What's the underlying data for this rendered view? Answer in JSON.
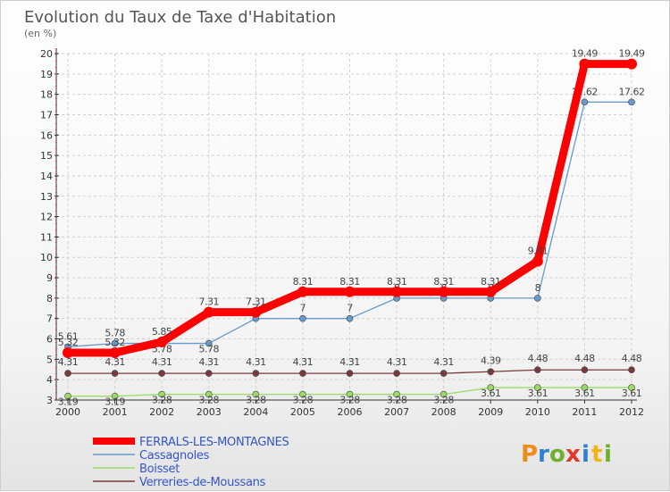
{
  "chart_data": {
    "type": "line",
    "title": "Evolution du Taux de Taxe d'Habitation",
    "ylabel": "(en %)",
    "xlabel": "",
    "ylim": [
      3,
      20
    ],
    "categories": [
      "2000",
      "2001",
      "2002",
      "2003",
      "2004",
      "2005",
      "2006",
      "2007",
      "2008",
      "2009",
      "2010",
      "2011",
      "2012"
    ],
    "yticks": [
      "3",
      "4",
      "5",
      "6",
      "7",
      "8",
      "9",
      "10",
      "11",
      "12",
      "13",
      "14",
      "15",
      "16",
      "17",
      "18",
      "19",
      "20"
    ],
    "series": [
      {
        "name": "FERRALS-LES-MONTAGNES",
        "color": "#ff0000",
        "values": [
          5.32,
          5.32,
          5.85,
          7.31,
          7.31,
          8.31,
          8.31,
          8.31,
          8.31,
          8.31,
          9.81,
          19.49,
          19.49
        ],
        "labels": [
          "5.32",
          "5.32",
          "5.85",
          "7.31",
          "7.31",
          "8.31",
          "8.31",
          "8.31",
          "8.31",
          "8.31",
          "9.81",
          "19.49",
          "19.49"
        ]
      },
      {
        "name": "Cassagnoles",
        "color": "#6699cc",
        "values": [
          5.61,
          5.78,
          5.78,
          5.78,
          7,
          7,
          7,
          8,
          8,
          8,
          8,
          17.62,
          17.62
        ],
        "labels": [
          "5.61",
          "5.78",
          "5.78",
          "5.78",
          "7",
          "7",
          "7",
          "8",
          "8",
          "8",
          "8",
          "17.62",
          "17.62"
        ]
      },
      {
        "name": "Boisset",
        "color": "#99dd66",
        "values": [
          3.19,
          3.19,
          3.28,
          3.28,
          3.28,
          3.28,
          3.28,
          3.28,
          3.28,
          3.61,
          3.61,
          3.61,
          3.61
        ],
        "labels": [
          "3.19",
          "3.19",
          "3.28",
          "3.28",
          "3.28",
          "3.28",
          "3.28",
          "3.28",
          "3.28",
          "3.61",
          "3.61",
          "3.61",
          "3.61"
        ]
      },
      {
        "name": "Verreries-de-Moussans",
        "color": "#7a3a3a",
        "values": [
          4.31,
          4.31,
          4.31,
          4.31,
          4.31,
          4.31,
          4.31,
          4.31,
          4.31,
          4.39,
          4.48,
          4.48,
          4.48
        ],
        "labels": [
          "4.31",
          "4.31",
          "4.31",
          "4.31",
          "4.31",
          "4.31",
          "4.31",
          "4.31",
          "4.31",
          "4.39",
          "4.48",
          "4.48",
          "4.48"
        ]
      }
    ]
  },
  "brand": {
    "logo_text": "Proxiti"
  }
}
